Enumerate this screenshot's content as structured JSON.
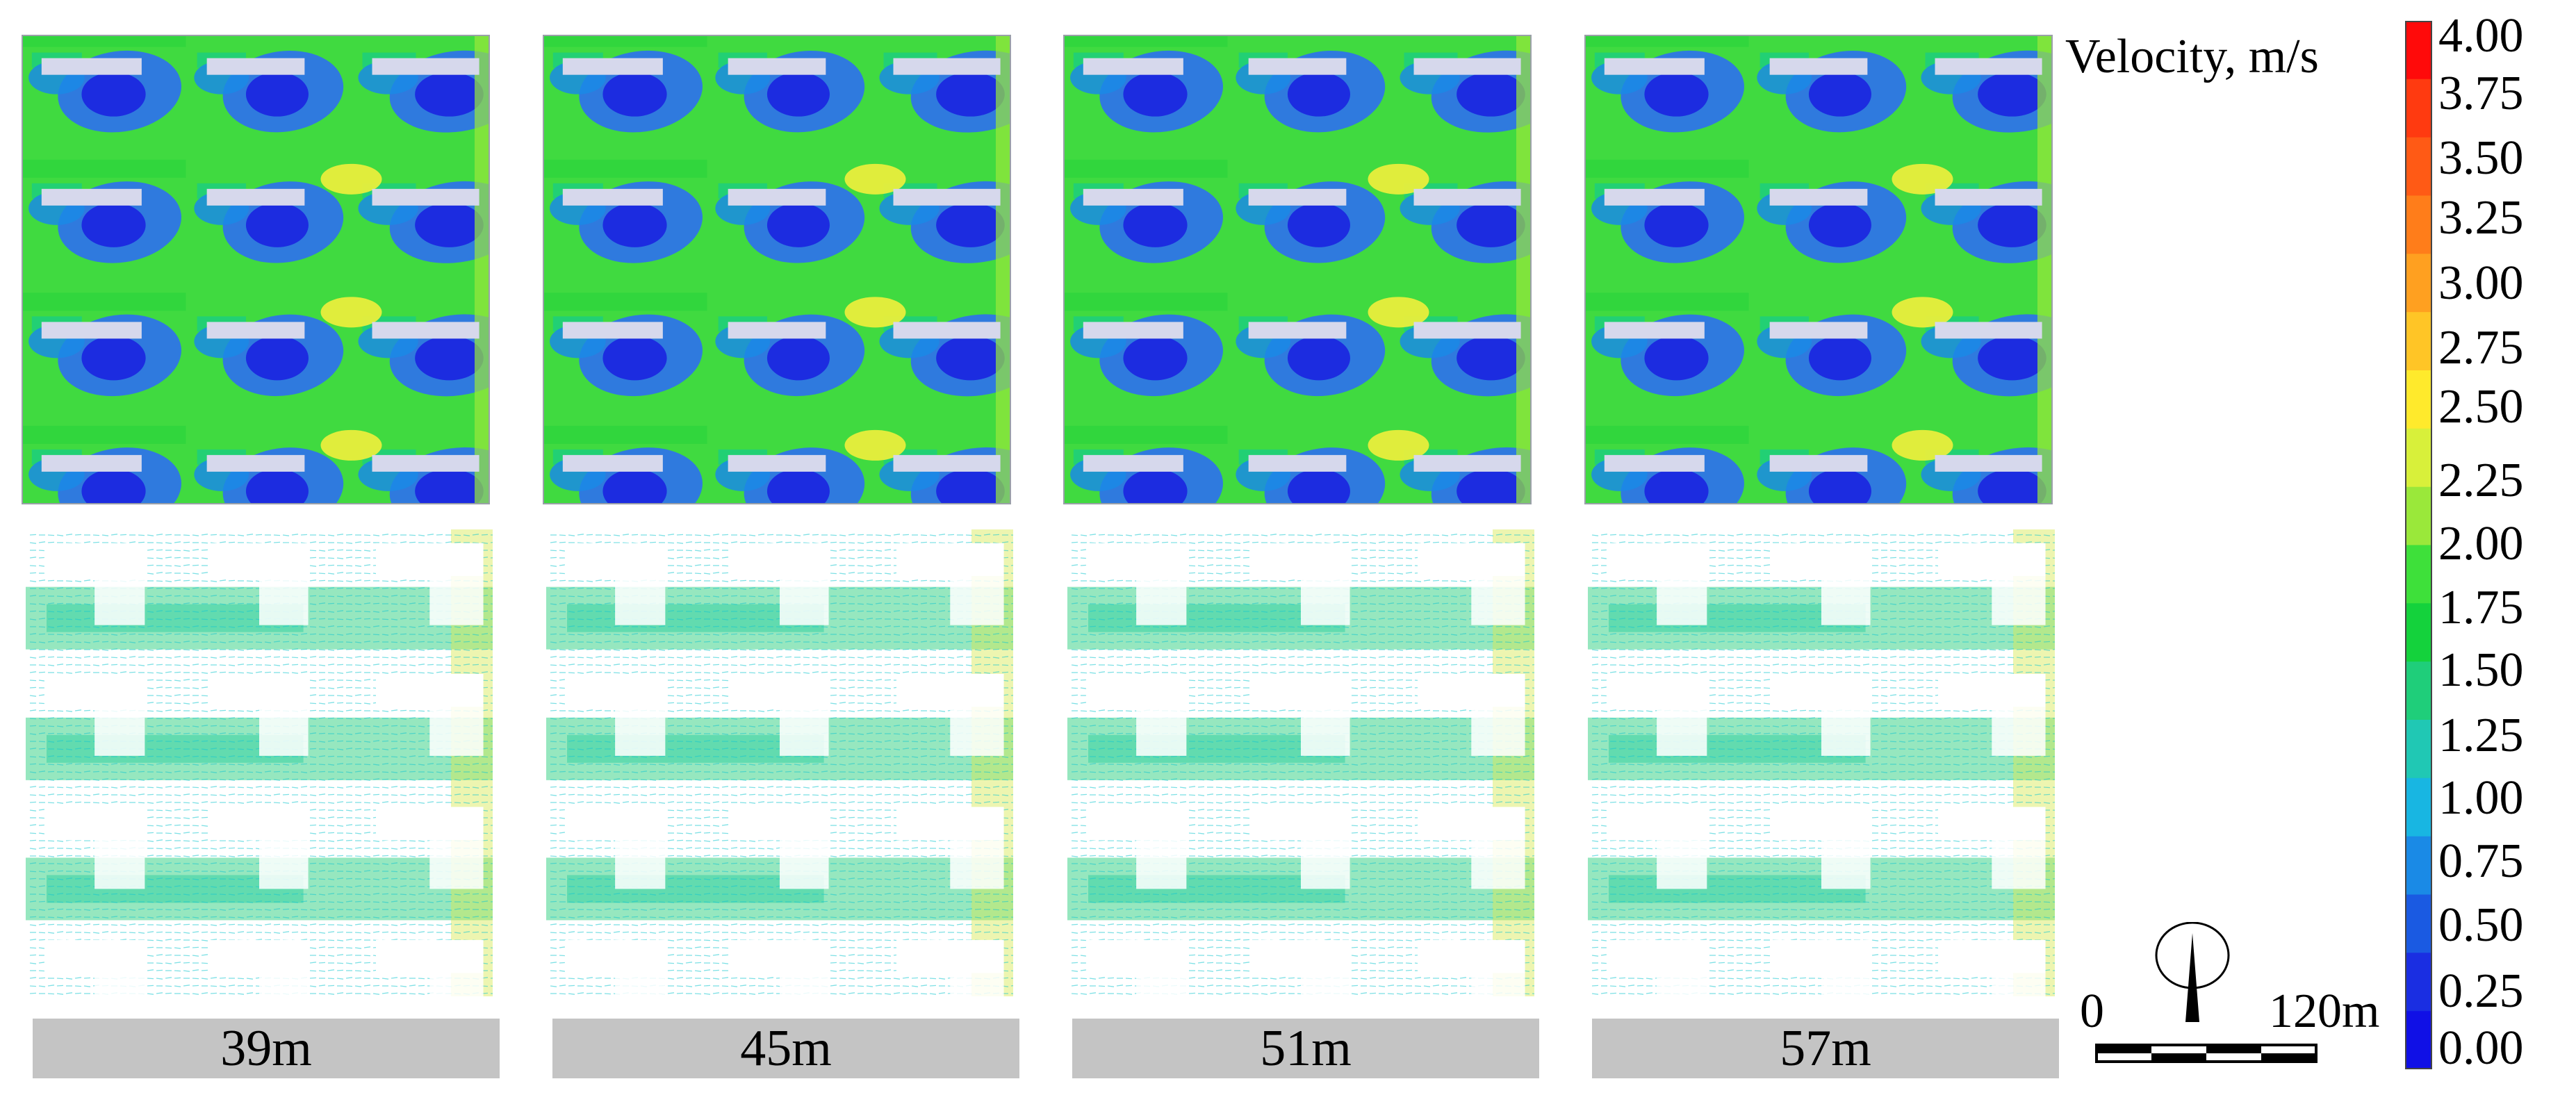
{
  "panels": [
    {
      "depth_label": "39m"
    },
    {
      "depth_label": "45m"
    },
    {
      "depth_label": "51m"
    },
    {
      "depth_label": "57m"
    }
  ],
  "legend": {
    "title": "Velocity, m/s",
    "ticks": [
      "4.00",
      "3.75",
      "3.50",
      "3.25",
      "3.00",
      "2.75",
      "2.50",
      "2.25",
      "2.00",
      "1.75",
      "1.50",
      "1.25",
      "1.00",
      "0.75",
      "0.50",
      "0.25",
      "0.00"
    ],
    "colors": [
      "#ff0a0a",
      "#ff3a10",
      "#ff5a15",
      "#ff7d1a",
      "#ffa020",
      "#ffc526",
      "#ffea2c",
      "#d8f03a",
      "#9ae83a",
      "#3ee03a",
      "#14d23c",
      "#1fce7a",
      "#20c8b4",
      "#18b6e2",
      "#1a8ae6",
      "#1a5ae2",
      "#1a2ee2",
      "#1010e6"
    ]
  },
  "scale": {
    "start_label": "0",
    "end_label": "120m"
  },
  "colors": {
    "flow_green": "#40da40",
    "low_blue": "#2e6ff0",
    "core_blue": "#1c2ce0",
    "accent_yellow": "#e9ee3c",
    "building_fill": "#d6d8ec",
    "caption_grey": "#c4c4c4"
  }
}
